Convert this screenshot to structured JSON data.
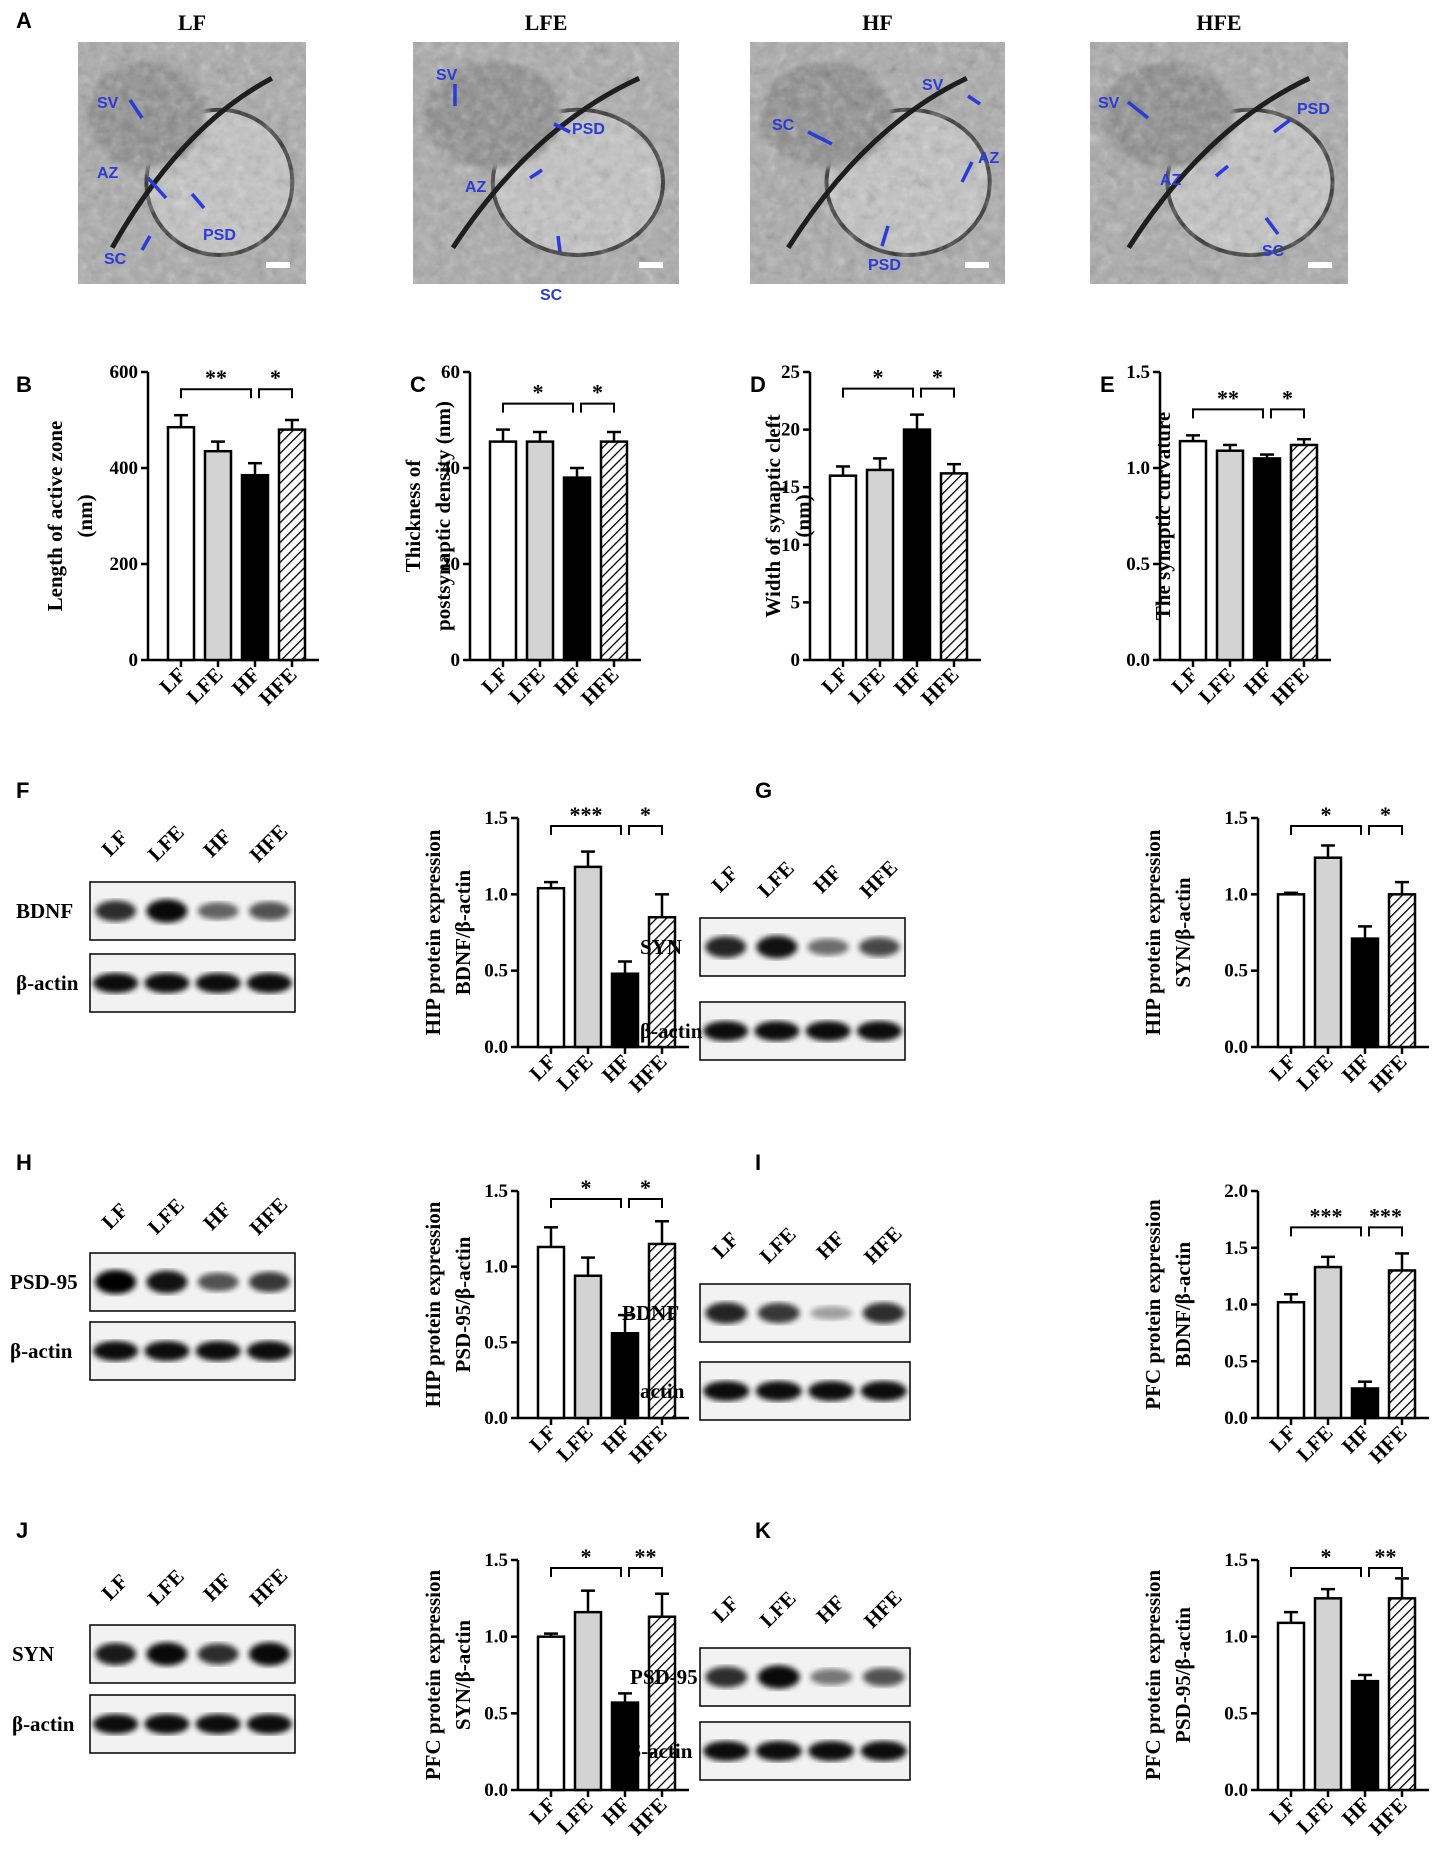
{
  "panel_letters": {
    "A": "A",
    "B": "B",
    "C": "C",
    "D": "D",
    "E": "E",
    "F": "F",
    "G": "G",
    "H": "H",
    "I": "I",
    "J": "J",
    "K": "K"
  },
  "em_panels": [
    {
      "title": "LF",
      "labels": [
        "SV",
        "AZ",
        "PSD",
        "SC"
      ]
    },
    {
      "title": "LFE",
      "labels": [
        "SV",
        "PSD",
        "AZ",
        "SC"
      ]
    },
    {
      "title": "HF",
      "labels": [
        "SV",
        "SC",
        "AZ",
        "PSD"
      ]
    },
    {
      "title": "HFE",
      "labels": [
        "SV",
        "PSD",
        "AZ",
        "SC"
      ]
    }
  ],
  "blots": [
    {
      "panel": "F",
      "lanes": [
        "LF",
        "LFE",
        "HF",
        "HFE"
      ],
      "target": "BDNF",
      "loading": "β-actin",
      "target_intensity": [
        0.75,
        0.95,
        0.45,
        0.55
      ]
    },
    {
      "panel": "G",
      "lanes": [
        "LF",
        "LFE",
        "HF",
        "HFE"
      ],
      "target": "SYN",
      "loading": "β-actin",
      "target_intensity": [
        0.8,
        0.9,
        0.4,
        0.6
      ]
    },
    {
      "panel": "H",
      "lanes": [
        "LF",
        "LFE",
        "HF",
        "HFE"
      ],
      "target": "PSD-95",
      "loading": "β-actin",
      "target_intensity": [
        1.0,
        0.9,
        0.55,
        0.7
      ]
    },
    {
      "panel": "I",
      "lanes": [
        "LF",
        "LFE",
        "HF",
        "HFE"
      ],
      "target": "BDNF",
      "loading": "β-actin",
      "target_intensity": [
        0.8,
        0.7,
        0.12,
        0.75
      ]
    },
    {
      "panel": "J",
      "lanes": [
        "LF",
        "LFE",
        "HF",
        "HFE"
      ],
      "target": "SYN",
      "loading": "β-actin",
      "target_intensity": [
        0.85,
        0.95,
        0.75,
        0.95
      ]
    },
    {
      "panel": "K",
      "lanes": [
        "LF",
        "LFE",
        "HF",
        "HFE"
      ],
      "target": "PSD-95",
      "loading": "β-actin",
      "target_intensity": [
        0.75,
        0.95,
        0.35,
        0.55
      ]
    }
  ],
  "chart_data": [
    {
      "panel": "B",
      "type": "bar",
      "categories": [
        "LF",
        "LFE",
        "HF",
        "HFE"
      ],
      "values": [
        485,
        435,
        385,
        480
      ],
      "errors": [
        25,
        20,
        25,
        20
      ],
      "ylabel_lines": [
        "Length of active zone",
        "(nm)"
      ],
      "ylim": [
        0,
        600
      ],
      "yticks": [
        "0",
        "200",
        "400",
        "600"
      ],
      "sig": [
        {
          "from": 0,
          "to": 2,
          "label": "**"
        },
        {
          "from": 2,
          "to": 3,
          "label": "*"
        }
      ]
    },
    {
      "panel": "C",
      "type": "bar",
      "categories": [
        "LF",
        "LFE",
        "HF",
        "HFE"
      ],
      "values": [
        45.5,
        45.5,
        38,
        45.5
      ],
      "errors": [
        2.5,
        2,
        2,
        2
      ],
      "ylabel_lines": [
        "Thickness of",
        "postsynaptic density (nm)"
      ],
      "ylim": [
        0,
        60
      ],
      "yticks": [
        "0",
        "20",
        "40",
        "60"
      ],
      "sig": [
        {
          "from": 0,
          "to": 2,
          "label": "*"
        },
        {
          "from": 2,
          "to": 3,
          "label": "*"
        }
      ]
    },
    {
      "panel": "D",
      "type": "bar",
      "categories": [
        "LF",
        "LFE",
        "HF",
        "HFE"
      ],
      "values": [
        16,
        16.5,
        20,
        16.2
      ],
      "errors": [
        0.8,
        1,
        1.3,
        0.8
      ],
      "ylabel_lines": [
        "Width of synaptic cleft",
        "(nm)"
      ],
      "ylim": [
        0,
        25
      ],
      "yticks": [
        "0",
        "5",
        "10",
        "15",
        "20",
        "25"
      ],
      "sig": [
        {
          "from": 0,
          "to": 2,
          "label": "*"
        },
        {
          "from": 2,
          "to": 3,
          "label": "*"
        }
      ]
    },
    {
      "panel": "E",
      "type": "bar",
      "categories": [
        "LF",
        "LFE",
        "HF",
        "HFE"
      ],
      "values": [
        1.14,
        1.09,
        1.05,
        1.12
      ],
      "errors": [
        0.03,
        0.03,
        0.02,
        0.03
      ],
      "ylabel_lines": [
        "The synaptic curvature"
      ],
      "ylim": [
        0,
        1.5
      ],
      "yticks": [
        "0.0",
        "0.5",
        "1.0",
        "1.5"
      ],
      "sig": [
        {
          "from": 0,
          "to": 2,
          "label": "**"
        },
        {
          "from": 2,
          "to": 3,
          "label": "*"
        }
      ]
    },
    {
      "panel": "F",
      "type": "bar",
      "categories": [
        "LF",
        "LFE",
        "HF",
        "HFE"
      ],
      "values": [
        1.04,
        1.18,
        0.48,
        0.85
      ],
      "errors": [
        0.04,
        0.1,
        0.08,
        0.15
      ],
      "ylabel_lines": [
        "HIP protein expression",
        "BDNF/β-actin"
      ],
      "ylim": [
        0,
        1.5
      ],
      "yticks": [
        "0.0",
        "0.5",
        "1.0",
        "1.5"
      ],
      "sig": [
        {
          "from": 0,
          "to": 2,
          "label": "***"
        },
        {
          "from": 2,
          "to": 3,
          "label": "*"
        }
      ]
    },
    {
      "panel": "G",
      "type": "bar",
      "categories": [
        "LF",
        "LFE",
        "HF",
        "HFE"
      ],
      "values": [
        1.0,
        1.24,
        0.71,
        1.0
      ],
      "errors": [
        0.01,
        0.08,
        0.08,
        0.08
      ],
      "ylabel_lines": [
        "HIP protein expression",
        "SYN/β-actin"
      ],
      "ylim": [
        0,
        1.5
      ],
      "yticks": [
        "0.0",
        "0.5",
        "1.0",
        "1.5"
      ],
      "sig": [
        {
          "from": 0,
          "to": 2,
          "label": "*"
        },
        {
          "from": 2,
          "to": 3,
          "label": "*"
        }
      ]
    },
    {
      "panel": "H",
      "type": "bar",
      "categories": [
        "LF",
        "LFE",
        "HF",
        "HFE"
      ],
      "values": [
        1.13,
        0.94,
        0.56,
        1.15
      ],
      "errors": [
        0.13,
        0.12,
        0.12,
        0.15
      ],
      "ylabel_lines": [
        "HIP protein expression",
        "PSD-95/β-actin"
      ],
      "ylim": [
        0,
        1.5
      ],
      "yticks": [
        "0.0",
        "0.5",
        "1.0",
        "1.5"
      ],
      "sig": [
        {
          "from": 0,
          "to": 2,
          "label": "*"
        },
        {
          "from": 2,
          "to": 3,
          "label": "*"
        }
      ]
    },
    {
      "panel": "I",
      "type": "bar",
      "categories": [
        "LF",
        "LFE",
        "HF",
        "HFE"
      ],
      "values": [
        1.02,
        1.33,
        0.26,
        1.3
      ],
      "errors": [
        0.07,
        0.09,
        0.06,
        0.15
      ],
      "ylabel_lines": [
        "PFC protein expression",
        "BDNF/β-actin"
      ],
      "ylim": [
        0,
        2.0
      ],
      "yticks": [
        "0.0",
        "0.5",
        "1.0",
        "1.5",
        "2.0"
      ],
      "sig": [
        {
          "from": 0,
          "to": 2,
          "label": "***"
        },
        {
          "from": 2,
          "to": 3,
          "label": "***"
        }
      ]
    },
    {
      "panel": "J",
      "type": "bar",
      "categories": [
        "LF",
        "LFE",
        "HF",
        "HFE"
      ],
      "values": [
        1.0,
        1.16,
        0.57,
        1.13
      ],
      "errors": [
        0.02,
        0.14,
        0.06,
        0.15
      ],
      "ylabel_lines": [
        "PFC protein expression",
        "SYN/β-actin"
      ],
      "ylim": [
        0,
        1.5
      ],
      "yticks": [
        "0.0",
        "0.5",
        "1.0",
        "1.5"
      ],
      "sig": [
        {
          "from": 0,
          "to": 2,
          "label": "*"
        },
        {
          "from": 2,
          "to": 3,
          "label": "**"
        }
      ]
    },
    {
      "panel": "K",
      "type": "bar",
      "categories": [
        "LF",
        "LFE",
        "HF",
        "HFE"
      ],
      "values": [
        1.09,
        1.25,
        0.71,
        1.25
      ],
      "errors": [
        0.07,
        0.06,
        0.04,
        0.13
      ],
      "ylabel_lines": [
        "PFC protein expression",
        "PSD-95/β-actin"
      ],
      "ylim": [
        0,
        1.5
      ],
      "yticks": [
        "0.0",
        "0.5",
        "1.0",
        "1.5"
      ],
      "sig": [
        {
          "from": 0,
          "to": 2,
          "label": "*"
        },
        {
          "from": 2,
          "to": 3,
          "label": "**"
        }
      ]
    }
  ],
  "colors": {
    "bar_lf": "#ffffff",
    "bar_lfe": "#d3d3d3",
    "bar_hf": "#000000",
    "bar_hfe": "hatched",
    "em_label": "#2b3bd8"
  }
}
